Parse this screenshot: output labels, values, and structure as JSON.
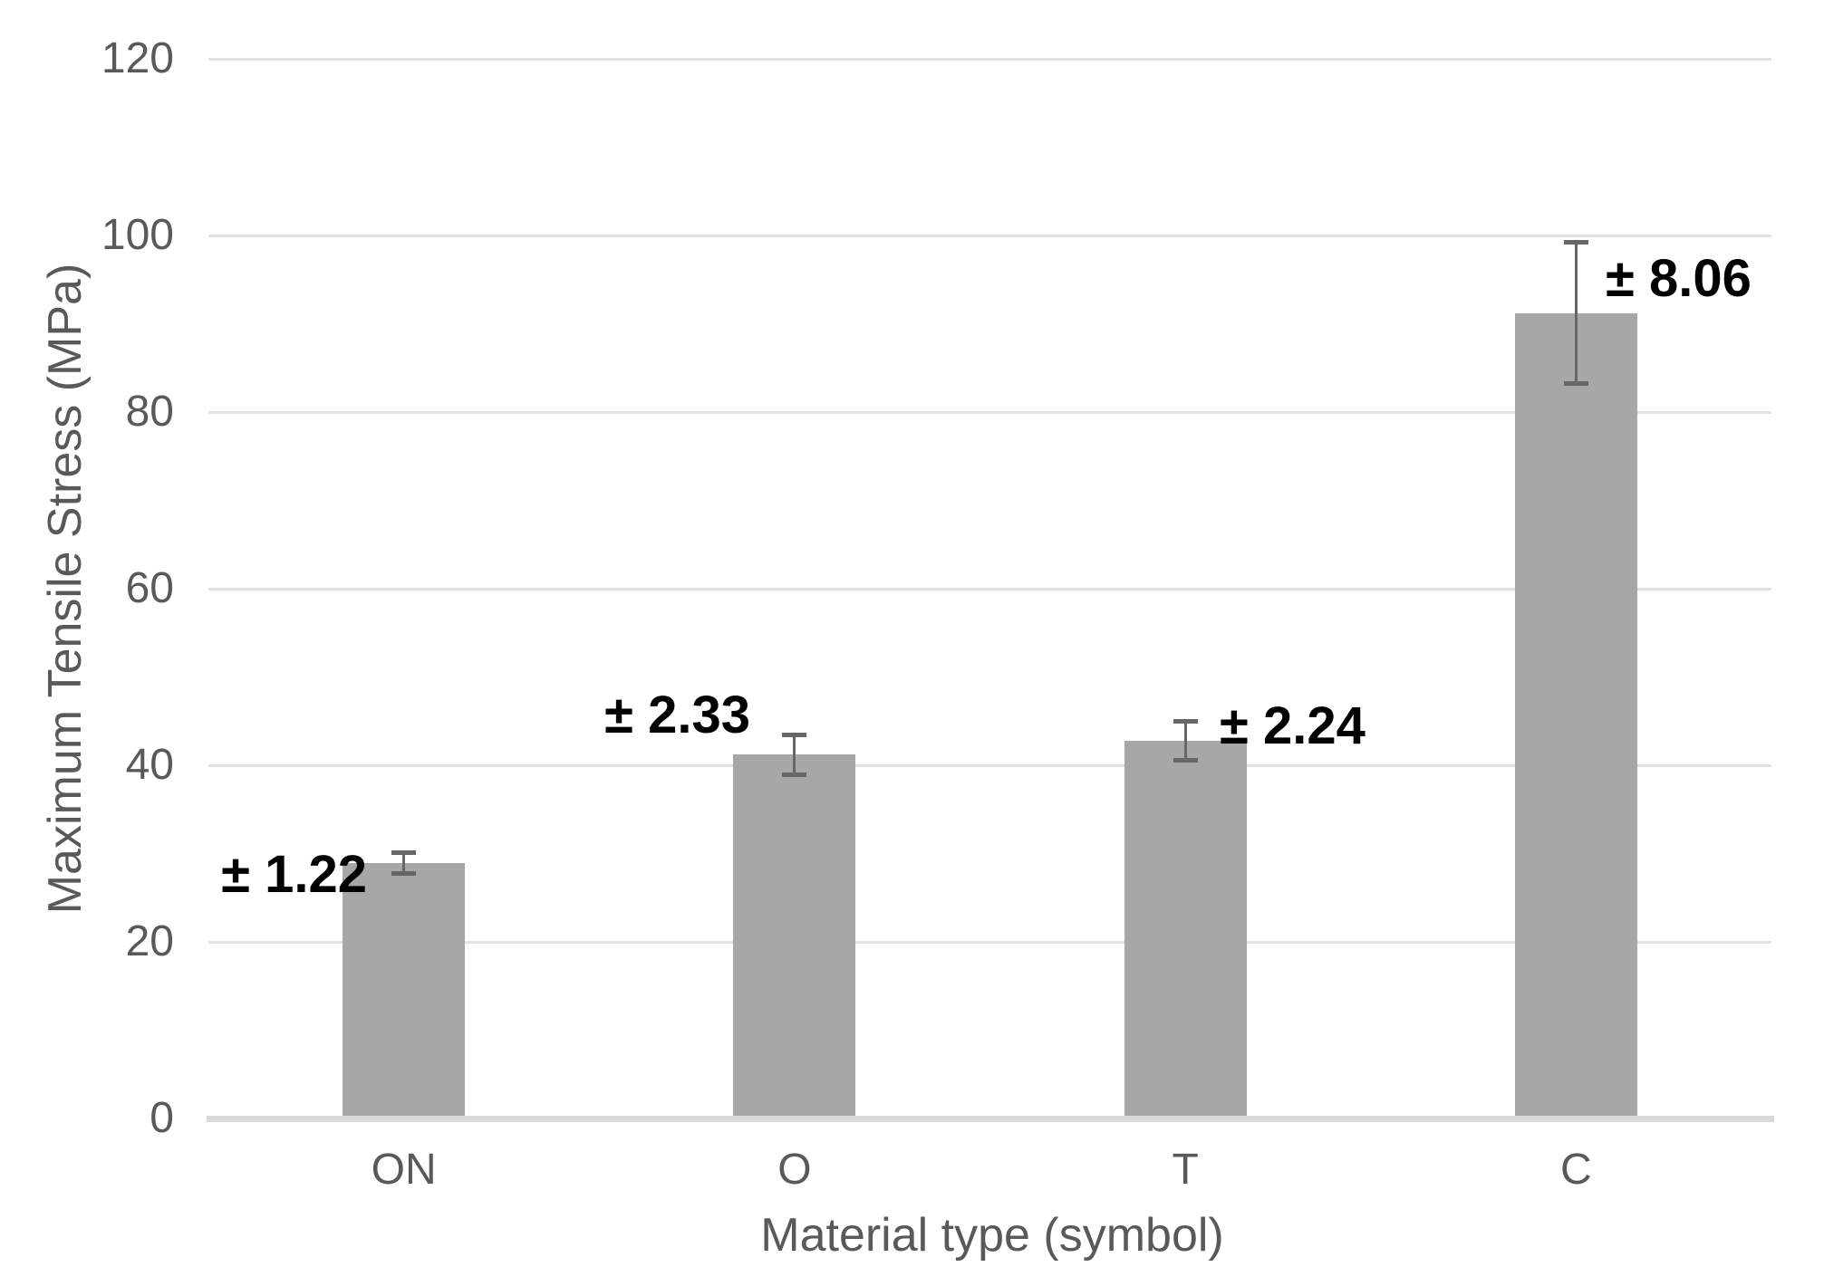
{
  "chart_data": {
    "type": "bar",
    "title": "",
    "xlabel": "Material type (symbol)",
    "ylabel": "Maximum Tensile Stress (MPa)",
    "ylim": [
      0,
      120
    ],
    "yticks": [
      0,
      20,
      40,
      60,
      80,
      100,
      120
    ],
    "grid": "horizontal",
    "legend": "none",
    "categories": [
      "ON",
      "O",
      "T",
      "C"
    ],
    "values": [
      28.9,
      41.2,
      42.8,
      91.2
    ],
    "errors": [
      1.22,
      2.33,
      2.24,
      8.06
    ],
    "error_labels": [
      "± 1.22",
      "± 2.33",
      "± 2.24",
      "± 8.06"
    ],
    "colors": {
      "bar_fill": "#a7a7a7",
      "error_bar": "#666666",
      "gridline": "#e2e2e2",
      "axis_line": "#d9d9d9",
      "axis_text": "#595959",
      "annotation_text": "#000000",
      "background": "#ffffff"
    }
  }
}
